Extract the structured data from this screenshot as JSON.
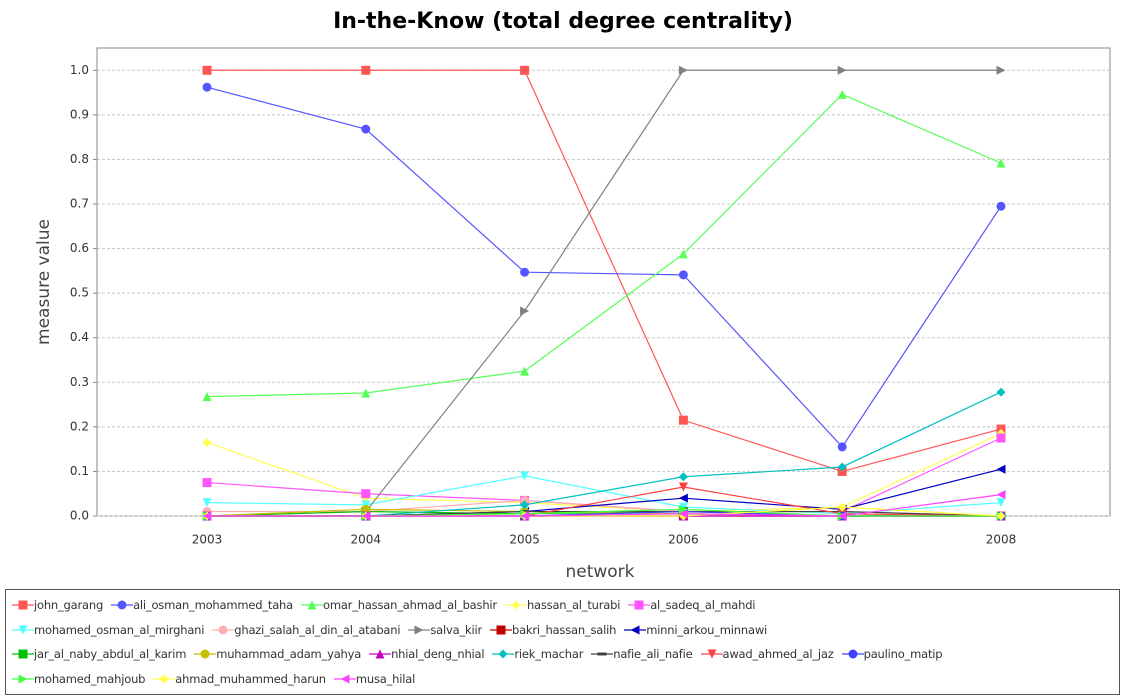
{
  "chart_data": {
    "type": "line",
    "title": "In-the-Know (total degree centrality)",
    "xlabel": "network",
    "ylabel": "measure value",
    "categories": [
      "2003",
      "2004",
      "2005",
      "2006",
      "2007",
      "2008"
    ],
    "ylim": [
      0,
      1.05
    ],
    "yticks": [
      {
        "value": 0,
        "label": "0.0"
      },
      0.1,
      0.2,
      0.3,
      0.4,
      0.5,
      0.6,
      0.7,
      0.8,
      0.9,
      {
        "value": 1,
        "label": "1.0"
      }
    ],
    "grid": true,
    "legend": "bottom",
    "series": [
      {
        "name": "john_garang",
        "color": "#ff5555",
        "marker": "square",
        "values": [
          1.0,
          1.0,
          1.0,
          0.215,
          0.1,
          0.195
        ]
      },
      {
        "name": "ali_osman_mohammed_taha",
        "color": "#5555ff",
        "marker": "circle",
        "values": [
          0.962,
          0.868,
          0.547,
          0.541,
          0.155,
          0.695
        ]
      },
      {
        "name": "omar_hassan_ahmad_al_bashir",
        "color": "#55ff55",
        "marker": "triangle-up",
        "values": [
          0.268,
          0.276,
          0.325,
          0.588,
          0.946,
          0.792
        ]
      },
      {
        "name": "hassan_al_turabi",
        "color": "#ffff55",
        "marker": "diamond",
        "values": [
          0.165,
          0.04,
          0.03,
          0.01,
          0.02,
          0.185
        ]
      },
      {
        "name": "al_sadeq_al_mahdi",
        "color": "#ff55ff",
        "marker": "square",
        "values": [
          0.075,
          0.05,
          0.035,
          0.01,
          0.01,
          0.175
        ]
      },
      {
        "name": "mohamed_osman_al_mirghani",
        "color": "#55ffff",
        "marker": "triangle-down",
        "values": [
          0.03,
          0.025,
          0.09,
          0.02,
          0.005,
          0.03
        ]
      },
      {
        "name": "ghazi_salah_al_din_al_atabani",
        "color": "#ffafaf",
        "marker": "circle",
        "values": [
          0.01,
          0.01,
          0.035,
          0.01,
          0.01,
          0.0
        ]
      },
      {
        "name": "salva_kiir",
        "color": "#808080",
        "marker": "triangle-right",
        "values": [
          0.0,
          0.01,
          0.46,
          1.0,
          1.0,
          1.0
        ]
      },
      {
        "name": "bakri_hassan_salih",
        "color": "#c00000",
        "marker": "square",
        "values": [
          0.0,
          0.0,
          0.0,
          0.0,
          0.0,
          0.0
        ]
      },
      {
        "name": "minni_arkou_minnawi",
        "color": "#0000c0",
        "marker": "triangle-left",
        "values": [
          0.0,
          0.0,
          0.01,
          0.04,
          0.015,
          0.105
        ]
      },
      {
        "name": "jar_al_naby_abdul_al_karim",
        "color": "#00c000",
        "marker": "square",
        "values": [
          0.0,
          0.01,
          0.005,
          0.01,
          0.0,
          0.0
        ]
      },
      {
        "name": "muhammad_adam_yahya",
        "color": "#c0c000",
        "marker": "circle",
        "values": [
          0.0,
          0.015,
          0.01,
          0.005,
          0.0,
          0.0
        ]
      },
      {
        "name": "nhial_deng_nhial",
        "color": "#c000c0",
        "marker": "triangle-up",
        "values": [
          0.0,
          0.0,
          0.0,
          0.0,
          0.0,
          0.0
        ]
      },
      {
        "name": "riek_machar",
        "color": "#00c0c0",
        "marker": "diamond",
        "values": [
          0.0,
          0.0,
          0.025,
          0.088,
          0.11,
          0.278
        ]
      },
      {
        "name": "nafie_ali_nafie",
        "color": "#404040",
        "marker": "dash",
        "values": [
          0.0,
          0.0,
          0.01,
          0.01,
          0.01,
          0.0
        ]
      },
      {
        "name": "awad_ahmed_al_jaz",
        "color": "#ff4040",
        "marker": "triangle-down",
        "values": [
          0.0,
          0.0,
          0.0,
          0.065,
          0.005,
          0.0
        ]
      },
      {
        "name": "paulino_matip",
        "color": "#4040ff",
        "marker": "circle",
        "values": [
          0.0,
          0.0,
          0.0,
          0.01,
          0.0,
          0.0
        ]
      },
      {
        "name": "mohamed_mahjoub",
        "color": "#40ff40",
        "marker": "triangle-right",
        "values": [
          0.0,
          0.0,
          0.005,
          0.015,
          0.0,
          0.0
        ]
      },
      {
        "name": "ahmad_muhammed_harun",
        "color": "#ffff40",
        "marker": "diamond",
        "values": [
          0.0,
          0.0,
          0.0,
          0.0,
          0.02,
          0.0
        ]
      },
      {
        "name": "musa_hilal",
        "color": "#ff40ff",
        "marker": "triangle-left",
        "values": [
          0.0,
          0.0,
          0.0,
          0.005,
          0.0,
          0.048
        ]
      }
    ]
  }
}
